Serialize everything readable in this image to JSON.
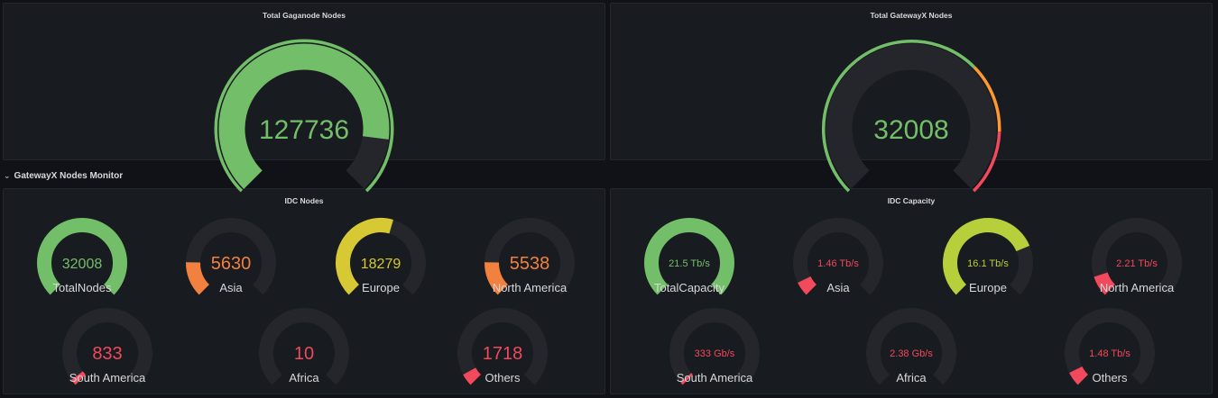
{
  "colors": {
    "track": "#24262c",
    "green": "#73bf69",
    "yellow": "#d6c933",
    "yellowgreen": "#b6cf3a",
    "orange": "#f2803f",
    "amber": "#ff9830",
    "red": "#f2495c"
  },
  "top_panels": [
    {
      "title": "Total Gaganode Nodes",
      "value": "127736",
      "value_color": "#73bf69",
      "fill_fraction": 0.86,
      "fill_color": "#73bf69",
      "threshold_bands": [
        {
          "from": 0,
          "to": 1,
          "color": "#73bf69"
        }
      ]
    },
    {
      "title": "Total GatewayX Nodes",
      "value": "32008",
      "value_color": "#73bf69",
      "fill_fraction": 0.0,
      "fill_color": "#73bf69",
      "threshold_bands": [
        {
          "from": 0,
          "to": 0.67,
          "color": "#73bf69"
        },
        {
          "from": 0.67,
          "to": 0.84,
          "color": "#ff9830"
        },
        {
          "from": 0.84,
          "to": 1,
          "color": "#f2495c"
        }
      ]
    }
  ],
  "row": {
    "chevron": "⌄",
    "title": "GatewayX Nodes Monitor"
  },
  "idc_nodes": {
    "title": "IDC Nodes",
    "gauges": [
      {
        "label": "TotalNodes",
        "value": "32008",
        "color": "#73bf69",
        "fill_fraction": 1.0
      },
      {
        "label": "Asia",
        "value": "5630",
        "color": "#f2803f",
        "fill_fraction": 0.17
      },
      {
        "label": "Europe",
        "value": "18279",
        "color": "#d6c933",
        "fill_fraction": 0.56
      },
      {
        "label": "North America",
        "value": "5538",
        "color": "#f2803f",
        "fill_fraction": 0.17
      },
      {
        "label": "South America",
        "value": "833",
        "color": "#f2495c",
        "fill_fraction": 0.03
      },
      {
        "label": "Africa",
        "value": "10",
        "color": "#f2495c",
        "fill_fraction": 0.0
      },
      {
        "label": "Others",
        "value": "1718",
        "color": "#f2495c",
        "fill_fraction": 0.06
      }
    ]
  },
  "idc_capacity": {
    "title": "IDC Capacity",
    "gauges": [
      {
        "label": "TotalCapacity",
        "value": "21.5 Tb/s",
        "color": "#73bf69",
        "fill_fraction": 1.0
      },
      {
        "label": "Asia",
        "value": "1.46 Tb/s",
        "color": "#f2495c",
        "fill_fraction": 0.07
      },
      {
        "label": "Europe",
        "value": "16.1 Tb/s",
        "color": "#b6cf3a",
        "fill_fraction": 0.75
      },
      {
        "label": "North America",
        "value": "2.21 Tb/s",
        "color": "#f2495c",
        "fill_fraction": 0.1
      },
      {
        "label": "South America",
        "value": "333 Gb/s",
        "color": "#f2495c",
        "fill_fraction": 0.015
      },
      {
        "label": "Africa",
        "value": "2.38 Gb/s",
        "color": "#f2495c",
        "fill_fraction": 0.0
      },
      {
        "label": "Others",
        "value": "1.48 Tb/s",
        "color": "#f2495c",
        "fill_fraction": 0.07
      }
    ]
  }
}
